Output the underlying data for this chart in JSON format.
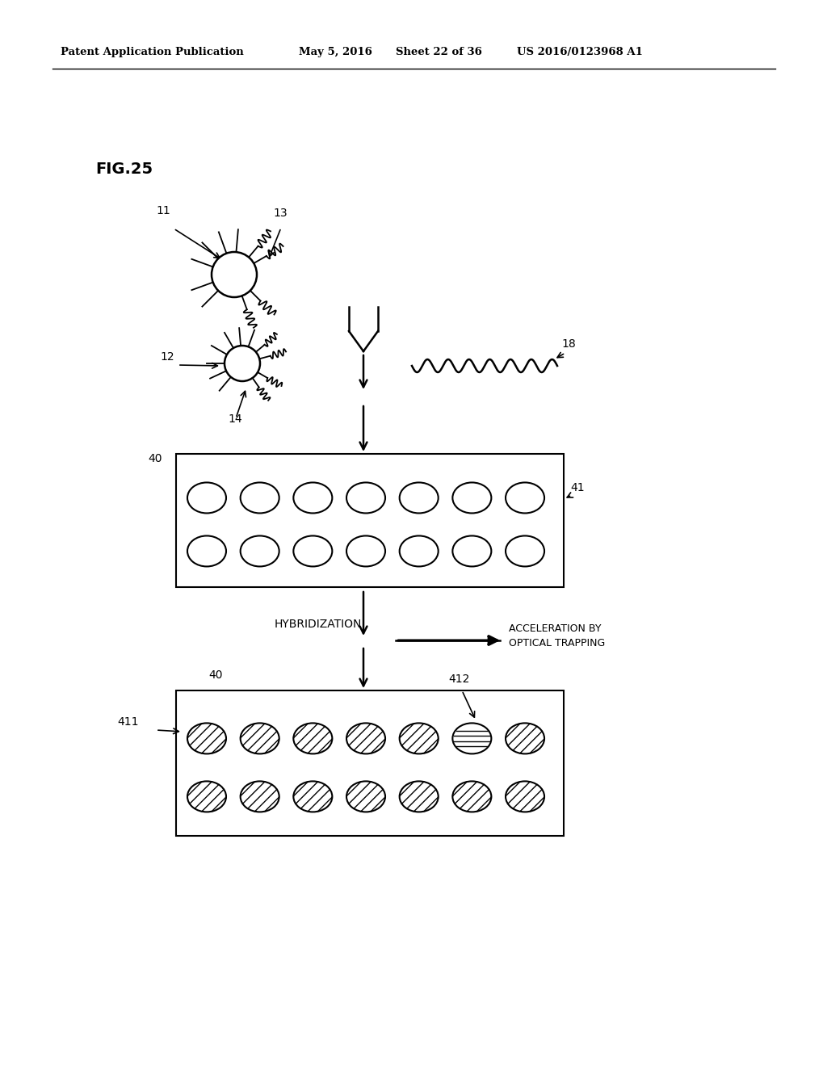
{
  "bg_color": "#ffffff",
  "header_text": "Patent Application Publication",
  "header_date": "May 5, 2016",
  "header_sheet": "Sheet 22 of 36",
  "header_patent": "US 2016/0123968 A1",
  "fig_label": "FIG.25",
  "label_11": "11",
  "label_12": "12",
  "label_13": "13",
  "label_14": "14",
  "label_18": "18",
  "label_40a": "40",
  "label_41": "41",
  "label_40b": "40",
  "label_411": "411",
  "label_412": "412",
  "text_hybridization": "HYBRIDIZATION",
  "text_acceleration_line1": "ACCELERATION BY",
  "text_acceleration_line2": "OPTICAL TRAPPING"
}
